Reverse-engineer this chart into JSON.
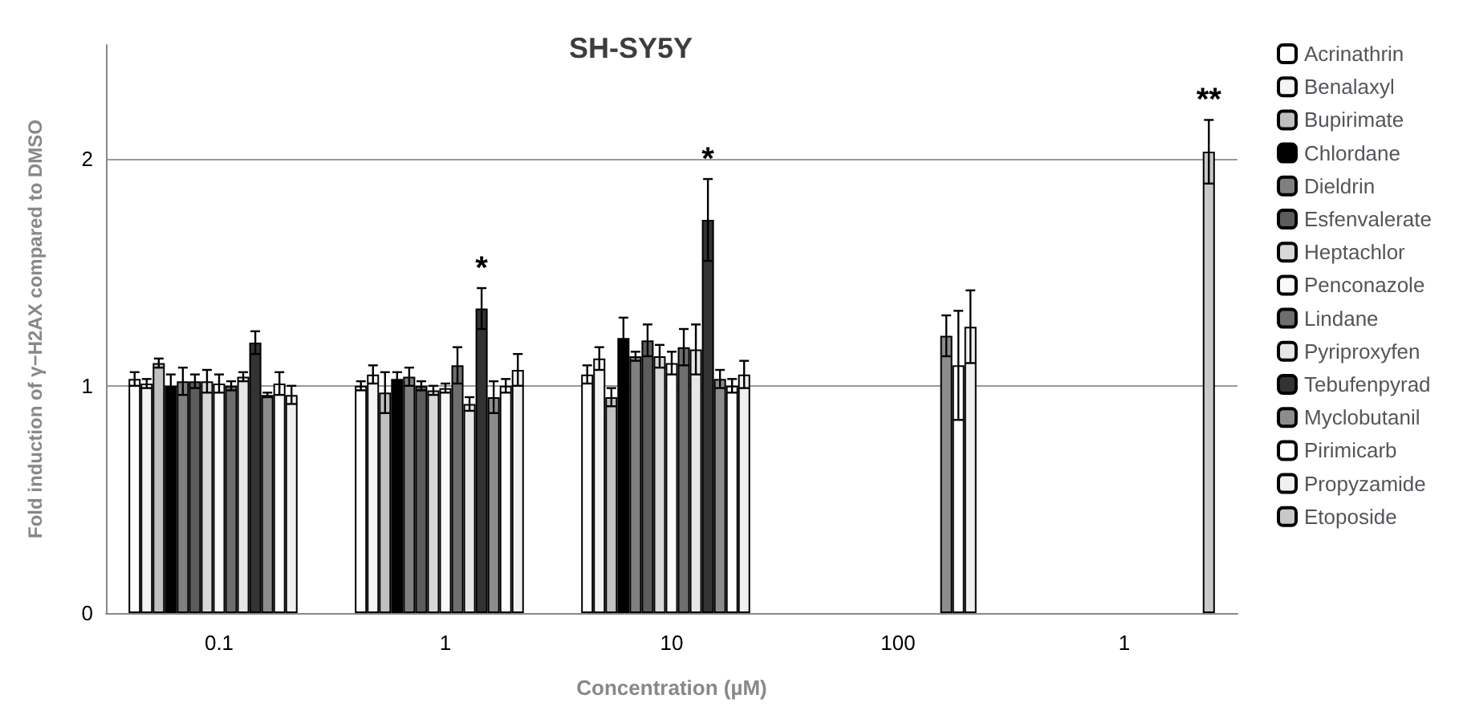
{
  "chart_data": {
    "type": "bar",
    "title": "SH-SY5Y",
    "xlabel": "Concentration (µM)",
    "ylabel": "Fold induction of γ−H2AX compared to DMSO",
    "categories": [
      "0.1",
      "1",
      "10",
      "100",
      "1"
    ],
    "ylim": [
      0,
      2.5
    ],
    "yticks": [
      0,
      1,
      2
    ],
    "grid": "y",
    "legend": "right",
    "series": [
      {
        "name": "Acrinathrin",
        "color": "#ffffff",
        "values": [
          1.03,
          1.0,
          1.05,
          null,
          null
        ],
        "errors": [
          0.03,
          0.02,
          0.04,
          null,
          null
        ]
      },
      {
        "name": "Benalaxyl",
        "color": "#f4f4f4",
        "values": [
          1.01,
          1.05,
          1.12,
          null,
          null
        ],
        "errors": [
          0.02,
          0.04,
          0.05,
          null,
          null
        ]
      },
      {
        "name": "Bupirimate",
        "color": "#c0c0c0",
        "values": [
          1.1,
          0.97,
          0.95,
          null,
          null
        ],
        "errors": [
          0.02,
          0.09,
          0.04,
          null,
          null
        ]
      },
      {
        "name": "Chlordane",
        "color": "#000000",
        "values": [
          1.0,
          1.03,
          1.21,
          null,
          null
        ],
        "errors": [
          0.05,
          0.03,
          0.09,
          null,
          null
        ]
      },
      {
        "name": "Dieldrin",
        "color": "#808080",
        "values": [
          1.02,
          1.04,
          1.13,
          null,
          null
        ],
        "errors": [
          0.06,
          0.04,
          0.02,
          null,
          null
        ]
      },
      {
        "name": "Esfenvalerate",
        "color": "#5c5c5c",
        "values": [
          1.02,
          1.0,
          1.2,
          null,
          null
        ],
        "errors": [
          0.03,
          0.02,
          0.07,
          null,
          null
        ]
      },
      {
        "name": "Heptachlor",
        "color": "#d8d8d8",
        "values": [
          1.02,
          0.98,
          1.13,
          null,
          null
        ],
        "errors": [
          0.05,
          0.02,
          0.05,
          null,
          null
        ]
      },
      {
        "name": "Penconazole",
        "color": "#fafafa",
        "values": [
          1.01,
          0.99,
          1.1,
          null,
          null
        ],
        "errors": [
          0.04,
          0.02,
          0.05,
          null,
          null
        ]
      },
      {
        "name": "Lindane",
        "color": "#6e6e6e",
        "values": [
          1.0,
          1.09,
          1.17,
          null,
          null
        ],
        "errors": [
          0.02,
          0.08,
          0.08,
          null,
          null
        ]
      },
      {
        "name": "Pyriproxyfen",
        "color": "#e6e6e6",
        "values": [
          1.04,
          0.92,
          1.16,
          null,
          null
        ],
        "errors": [
          0.02,
          0.03,
          0.11,
          null,
          null
        ]
      },
      {
        "name": "Tebufenpyrad",
        "color": "#333333",
        "values": [
          1.19,
          1.34,
          1.73,
          null,
          null
        ],
        "errors": [
          0.05,
          0.09,
          0.18,
          null,
          null
        ],
        "value_labels": [
          null,
          "*",
          "*",
          null,
          null
        ]
      },
      {
        "name": "Myclobutanil",
        "color": "#8c8c8c",
        "values": [
          0.96,
          0.95,
          1.03,
          1.22,
          null
        ],
        "errors": [
          0.01,
          0.07,
          0.04,
          0.09,
          null
        ]
      },
      {
        "name": "Pirimicarb",
        "color": "#ffffff",
        "values": [
          1.01,
          1.0,
          1.0,
          1.09,
          null
        ],
        "errors": [
          0.05,
          0.03,
          0.03,
          0.24,
          null
        ]
      },
      {
        "name": "Propyzamide",
        "color": "#f0f0f0",
        "values": [
          0.96,
          1.07,
          1.05,
          1.26,
          null
        ],
        "errors": [
          0.04,
          0.07,
          0.06,
          0.16,
          null
        ]
      },
      {
        "name": "Etoposide",
        "color": "#c8c8c8",
        "values": [
          null,
          null,
          null,
          null,
          2.03
        ],
        "errors": [
          null,
          null,
          null,
          null,
          0.14
        ],
        "value_labels": [
          null,
          null,
          null,
          null,
          "**"
        ]
      }
    ]
  }
}
